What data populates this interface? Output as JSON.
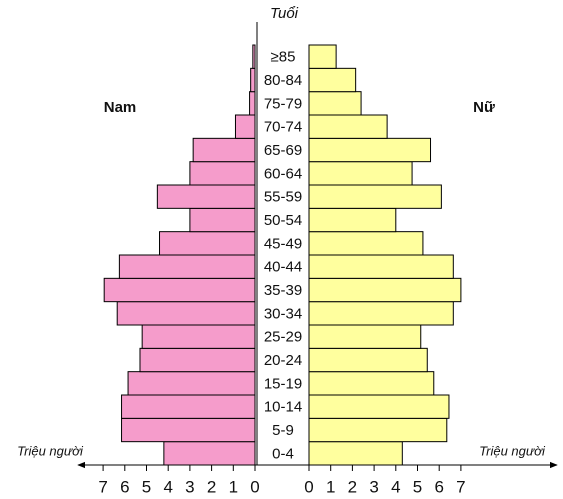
{
  "chart_data": {
    "type": "pyramid",
    "y_label": "Tuổi",
    "x_label": "Triệu người",
    "categories": [
      "0-4",
      "5-9",
      "10-14",
      "15-19",
      "20-24",
      "25-29",
      "30-34",
      "35-39",
      "40-44",
      "45-49",
      "50-54",
      "55-59",
      "60-64",
      "65-69",
      "70-74",
      "75-79",
      "80-84",
      "≥85"
    ],
    "series": [
      {
        "name": "Nam",
        "color": "#f59ccb",
        "values": [
          4.2,
          6.15,
          6.15,
          5.85,
          5.3,
          5.2,
          6.35,
          6.95,
          6.25,
          4.4,
          3.0,
          4.5,
          3.0,
          2.85,
          0.9,
          0.25,
          0.2,
          0.1
        ]
      },
      {
        "name": "Nữ",
        "color": "#ffff9e",
        "values": [
          4.3,
          6.35,
          6.45,
          5.75,
          5.45,
          5.15,
          6.65,
          7.0,
          6.65,
          5.25,
          4.0,
          6.1,
          4.75,
          5.6,
          3.6,
          2.4,
          2.15,
          1.25
        ]
      }
    ],
    "xlim": [
      0,
      7
    ],
    "xticks": [
      0,
      1,
      2,
      3,
      4,
      5,
      6,
      7
    ]
  }
}
